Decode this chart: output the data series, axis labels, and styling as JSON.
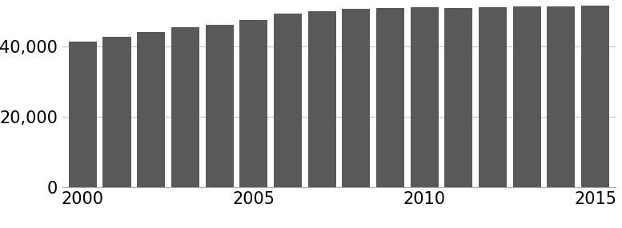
{
  "years": [
    2000,
    2001,
    2002,
    2003,
    2004,
    2005,
    2006,
    2007,
    2008,
    2009,
    2010,
    2011,
    2012,
    2013,
    2014,
    2015
  ],
  "values": [
    41500,
    42800,
    44200,
    45500,
    46200,
    47500,
    49500,
    50200,
    50800,
    51000,
    51200,
    51100,
    51300,
    51400,
    51500,
    51600
  ],
  "bar_color": "#595959",
  "background_color": "#ffffff",
  "yticks": [
    0,
    20000,
    40000
  ],
  "ylim": [
    0,
    52000
  ],
  "xticks": [
    2000,
    2005,
    2010,
    2015
  ],
  "grid_color": "#c8c8c8",
  "tick_label_fontsize": 15,
  "bar_width": 0.82
}
